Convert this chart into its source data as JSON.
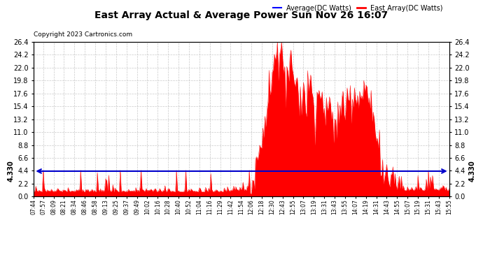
{
  "title": "East Array Actual & Average Power Sun Nov 26 16:07",
  "copyright": "Copyright 2023 Cartronics.com",
  "legend_average": "Average(DC Watts)",
  "legend_east": "East Array(DC Watts)",
  "avg_value": 4.33,
  "avg_label": "4.330",
  "ymin": 0.0,
  "ymax": 26.4,
  "yticks": [
    0.0,
    2.2,
    4.4,
    6.6,
    8.8,
    11.0,
    13.2,
    15.4,
    17.6,
    19.8,
    22.0,
    24.2,
    26.4
  ],
  "background_color": "#ffffff",
  "fill_color": "#ff0000",
  "avg_line_color": "#0000cc",
  "grid_color": "#bbbbbb",
  "title_color": "#000000",
  "copyright_color": "#000000",
  "legend_avg_color": "#0000ff",
  "legend_east_color": "#ff0000",
  "time_labels": [
    "07:44",
    "07:57",
    "08:09",
    "08:21",
    "08:34",
    "08:46",
    "08:58",
    "09:13",
    "09:25",
    "09:37",
    "09:49",
    "10:02",
    "10:16",
    "10:28",
    "10:40",
    "10:52",
    "11:04",
    "11:16",
    "11:29",
    "11:42",
    "11:54",
    "12:06",
    "12:18",
    "12:30",
    "12:43",
    "12:55",
    "13:07",
    "13:19",
    "13:31",
    "13:43",
    "13:55",
    "14:07",
    "14:19",
    "14:31",
    "14:43",
    "14:55",
    "15:07",
    "15:19",
    "15:31",
    "15:43",
    "15:55"
  ],
  "n_points": 400
}
